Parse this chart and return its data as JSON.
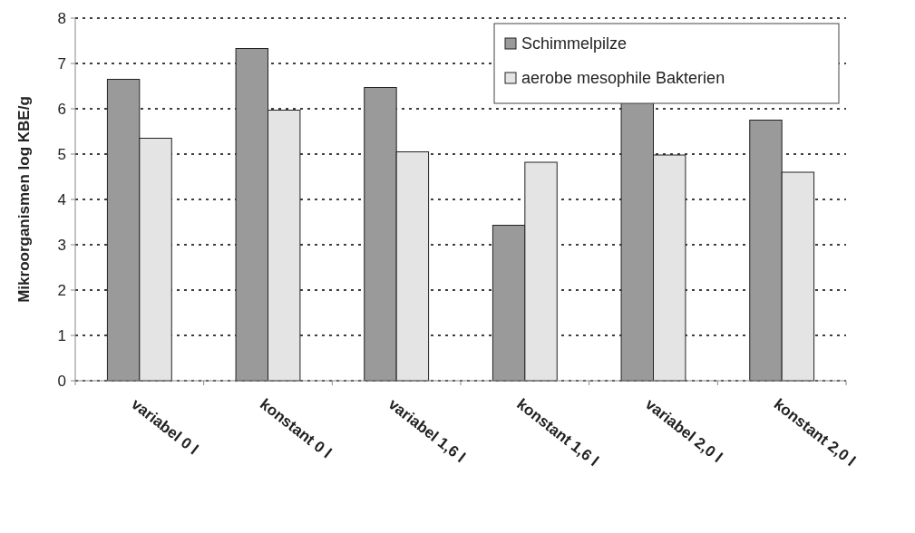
{
  "chart_data": {
    "type": "bar",
    "ylabel": "Mikroorganismen log KBE/g",
    "categories": [
      "variabel 0 l",
      "konstant 0 l",
      "variabel 1,6 l",
      "konstant 1,6 l",
      "variabel 2,0 l",
      "konstant 2,0 l"
    ],
    "series": [
      {
        "name": "Schimmelpilze",
        "color": "#9a9a9a",
        "values": [
          6.65,
          7.33,
          6.47,
          3.43,
          6.15,
          5.75
        ]
      },
      {
        "name": "aerobe mesophile Bakterien",
        "color": "#e4e4e4",
        "values": [
          5.35,
          5.97,
          5.05,
          4.82,
          4.98,
          4.6
        ]
      }
    ],
    "ylim": [
      0,
      8
    ],
    "yticks": [
      0,
      1,
      2,
      3,
      4,
      5,
      6,
      7,
      8
    ],
    "grid": "y",
    "legend": "top right"
  }
}
